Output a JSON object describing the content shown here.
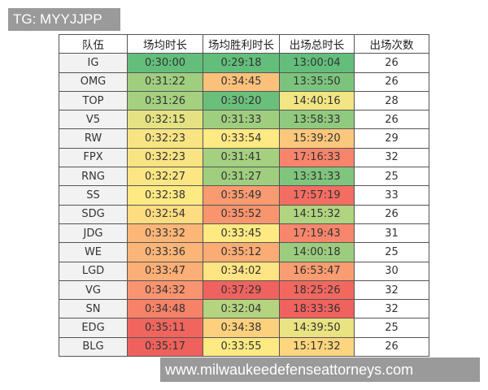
{
  "watermark_top": "TG: MYYJJPP",
  "watermark_bottom": "www.milwaukeedefenseattorneys.com",
  "headers": [
    "队伍",
    "场均时长",
    "场均胜利时长",
    "出场总时长",
    "出场次数"
  ],
  "rows": [
    {
      "team": "IG",
      "avg": "0:30:00",
      "win": "0:29:18",
      "total": "13:00:04",
      "count": "26",
      "colors": [
        "#63be7b",
        "#63be7b",
        "#63be7b"
      ]
    },
    {
      "team": "OMG",
      "avg": "0:31:22",
      "win": "0:34:45",
      "total": "13:35:50",
      "count": "26",
      "colors": [
        "#9fce7f",
        "#fbc17a",
        "#7cc47d"
      ]
    },
    {
      "team": "TOP",
      "avg": "0:31:26",
      "win": "0:30:20",
      "total": "14:40:16",
      "count": "28",
      "colors": [
        "#a4d07f",
        "#6ac07b",
        "#f2e583"
      ]
    },
    {
      "team": "V5",
      "avg": "0:32:15",
      "win": "0:31:33",
      "total": "13:58:33",
      "count": "26",
      "colors": [
        "#e5e283",
        "#9fce7f",
        "#90ca7e"
      ]
    },
    {
      "team": "RW",
      "avg": "0:32:23",
      "win": "0:33:54",
      "total": "15:39:20",
      "count": "29",
      "colors": [
        "#f8e483",
        "#fee983",
        "#fbc77c"
      ]
    },
    {
      "team": "FPX",
      "avg": "0:32:23",
      "win": "0:31:41",
      "total": "17:16:33",
      "count": "32",
      "colors": [
        "#f8e483",
        "#a4d07f",
        "#f8846c"
      ]
    },
    {
      "team": "RNG",
      "avg": "0:32:27",
      "win": "0:31:27",
      "total": "13:31:33",
      "count": "25",
      "colors": [
        "#fbe683",
        "#9fce7f",
        "#80c57d"
      ]
    },
    {
      "team": "SS",
      "avg": "0:32:38",
      "win": "0:35:49",
      "total": "17:57:19",
      "count": "33",
      "colors": [
        "#fee983",
        "#f99a70",
        "#f46d63"
      ]
    },
    {
      "team": "SDG",
      "avg": "0:32:54",
      "win": "0:35:52",
      "total": "14:15:32",
      "count": "26",
      "colors": [
        "#fedc80",
        "#f8956e",
        "#b0d480"
      ]
    },
    {
      "team": "JDG",
      "avg": "0:33:32",
      "win": "0:33:45",
      "total": "17:19:43",
      "count": "31",
      "colors": [
        "#fbb678",
        "#fee983",
        "#f8866c"
      ]
    },
    {
      "team": "WE",
      "avg": "0:33:36",
      "win": "0:35:12",
      "total": "14:00:18",
      "count": "25",
      "colors": [
        "#fbb578",
        "#fbab74",
        "#9ccd7f"
      ]
    },
    {
      "team": "LGD",
      "avg": "0:33:47",
      "win": "0:34:02",
      "total": "16:53:47",
      "count": "30",
      "colors": [
        "#fbae75",
        "#fee482",
        "#fa9c71"
      ]
    },
    {
      "team": "VG",
      "avg": "0:34:32",
      "win": "0:37:29",
      "total": "18:25:26",
      "count": "32",
      "colors": [
        "#f89470",
        "#f0625f",
        "#f2685f"
      ]
    },
    {
      "team": "SN",
      "avg": "0:34:48",
      "win": "0:32:04",
      "total": "18:33:36",
      "count": "32",
      "colors": [
        "#f68268",
        "#b4d480",
        "#f0625f"
      ]
    },
    {
      "team": "EDG",
      "avg": "0:35:11",
      "win": "0:34:38",
      "total": "14:39:50",
      "count": "25",
      "colors": [
        "#f0655e",
        "#fdd07d",
        "#e9e382"
      ]
    },
    {
      "team": "BLG",
      "avg": "0:35:17",
      "win": "0:33:55",
      "total": "15:17:32",
      "count": "26",
      "colors": [
        "#ef615d",
        "#feea83",
        "#fed57f"
      ]
    }
  ]
}
